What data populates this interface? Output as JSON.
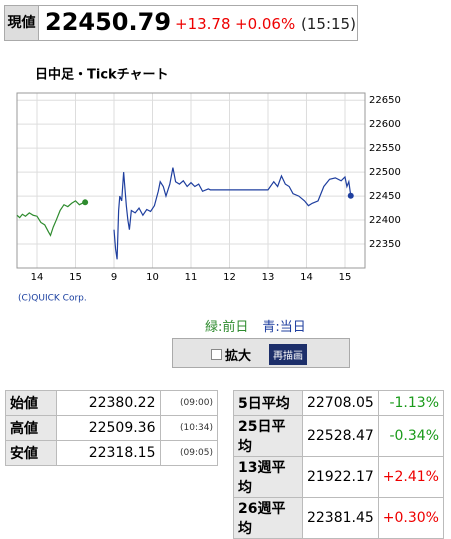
{
  "header": {
    "label": "現値",
    "price": "22450.79",
    "change": "+13.78",
    "change_pct": "+0.06%",
    "time": "(15:15)"
  },
  "chart_data": {
    "type": "line",
    "title": "日中足・Tickチャート",
    "source": "(C)QUICK Corp.",
    "series": [
      {
        "name": "緑:前日",
        "color": "#2e8b2e",
        "x": [
          -0.52,
          -0.45,
          -0.38,
          -0.3,
          -0.2,
          -0.1,
          0,
          0.1,
          0.2,
          0.3,
          0.35,
          0.42,
          0.5,
          0.6,
          0.7,
          0.8,
          0.9,
          1.0,
          1.1,
          1.2,
          1.25
        ],
        "values": [
          22410,
          22405,
          22412,
          22408,
          22415,
          22410,
          22408,
          22395,
          22390,
          22375,
          22368,
          22385,
          22400,
          22420,
          22432,
          22428,
          22435,
          22440,
          22432,
          22436,
          22437.01
        ]
      },
      {
        "name": "青:当日",
        "color": "#1f3f9f",
        "x": [
          2.0,
          2.04,
          2.08,
          2.12,
          2.15,
          2.2,
          2.25,
          2.28,
          2.32,
          2.36,
          2.4,
          2.45,
          2.55,
          2.65,
          2.75,
          2.85,
          2.95,
          3.05,
          3.15,
          3.2,
          3.28,
          3.35,
          3.45,
          3.53,
          3.6,
          3.7,
          3.8,
          3.9,
          4.0,
          4.1,
          4.2,
          4.3,
          4.45,
          4.5,
          5.5,
          6.0,
          6.15,
          6.25,
          6.35,
          6.45,
          6.55,
          6.65,
          6.8,
          6.95,
          7.05,
          7.15,
          7.3,
          7.45,
          7.6,
          7.75,
          7.9,
          8.0,
          8.05,
          8.1,
          8.15
        ],
        "values": [
          22380,
          22340,
          22318.15,
          22420,
          22450,
          22440,
          22500,
          22470,
          22430,
          22400,
          22380,
          22420,
          22415,
          22425,
          22410,
          22422,
          22418,
          22430,
          22460,
          22480,
          22470,
          22450,
          22475,
          22509.36,
          22480,
          22475,
          22482,
          22470,
          22478,
          22470,
          22475,
          22460,
          22465,
          22463,
          22463,
          22463,
          22480,
          22470,
          22492,
          22475,
          22470,
          22455,
          22450,
          22440,
          22430,
          22435,
          22440,
          22470,
          22485,
          22488,
          22482,
          22490,
          22470,
          22480,
          22450.79
        ]
      }
    ],
    "xlim": [
      -0.52,
      8.52
    ],
    "xticks": [
      {
        "value": 0,
        "label": "14"
      },
      {
        "value": 1,
        "label": "15"
      },
      {
        "value": 2,
        "label": "9"
      },
      {
        "value": 3,
        "label": "10"
      },
      {
        "value": 4,
        "label": "11"
      },
      {
        "value": 5,
        "label": "12"
      },
      {
        "value": 6,
        "label": "13"
      },
      {
        "value": 7,
        "label": "14"
      },
      {
        "value": 8,
        "label": "15"
      }
    ],
    "ylim": [
      22300,
      22665
    ],
    "yticks": [
      22350,
      22400,
      22450,
      22500,
      22550,
      22600,
      22650
    ],
    "grid": true
  },
  "controls": {
    "checkbox": "拡大",
    "button": "再描画"
  },
  "prices": {
    "rows": [
      [
        "始値",
        "22380.22",
        "(09:00)"
      ],
      [
        "高値",
        "22509.36",
        "(10:34)"
      ],
      [
        "安値",
        "22318.15",
        "(09:05)"
      ]
    ]
  },
  "averages": {
    "rows": [
      [
        "5日平均",
        "22708.05",
        "-1.13%"
      ],
      [
        "25日平均",
        "22528.47",
        "-0.34%"
      ],
      [
        "13週平均",
        "21922.17",
        "+2.41%"
      ],
      [
        "26週平均",
        "22381.45",
        "+0.30%"
      ]
    ]
  }
}
